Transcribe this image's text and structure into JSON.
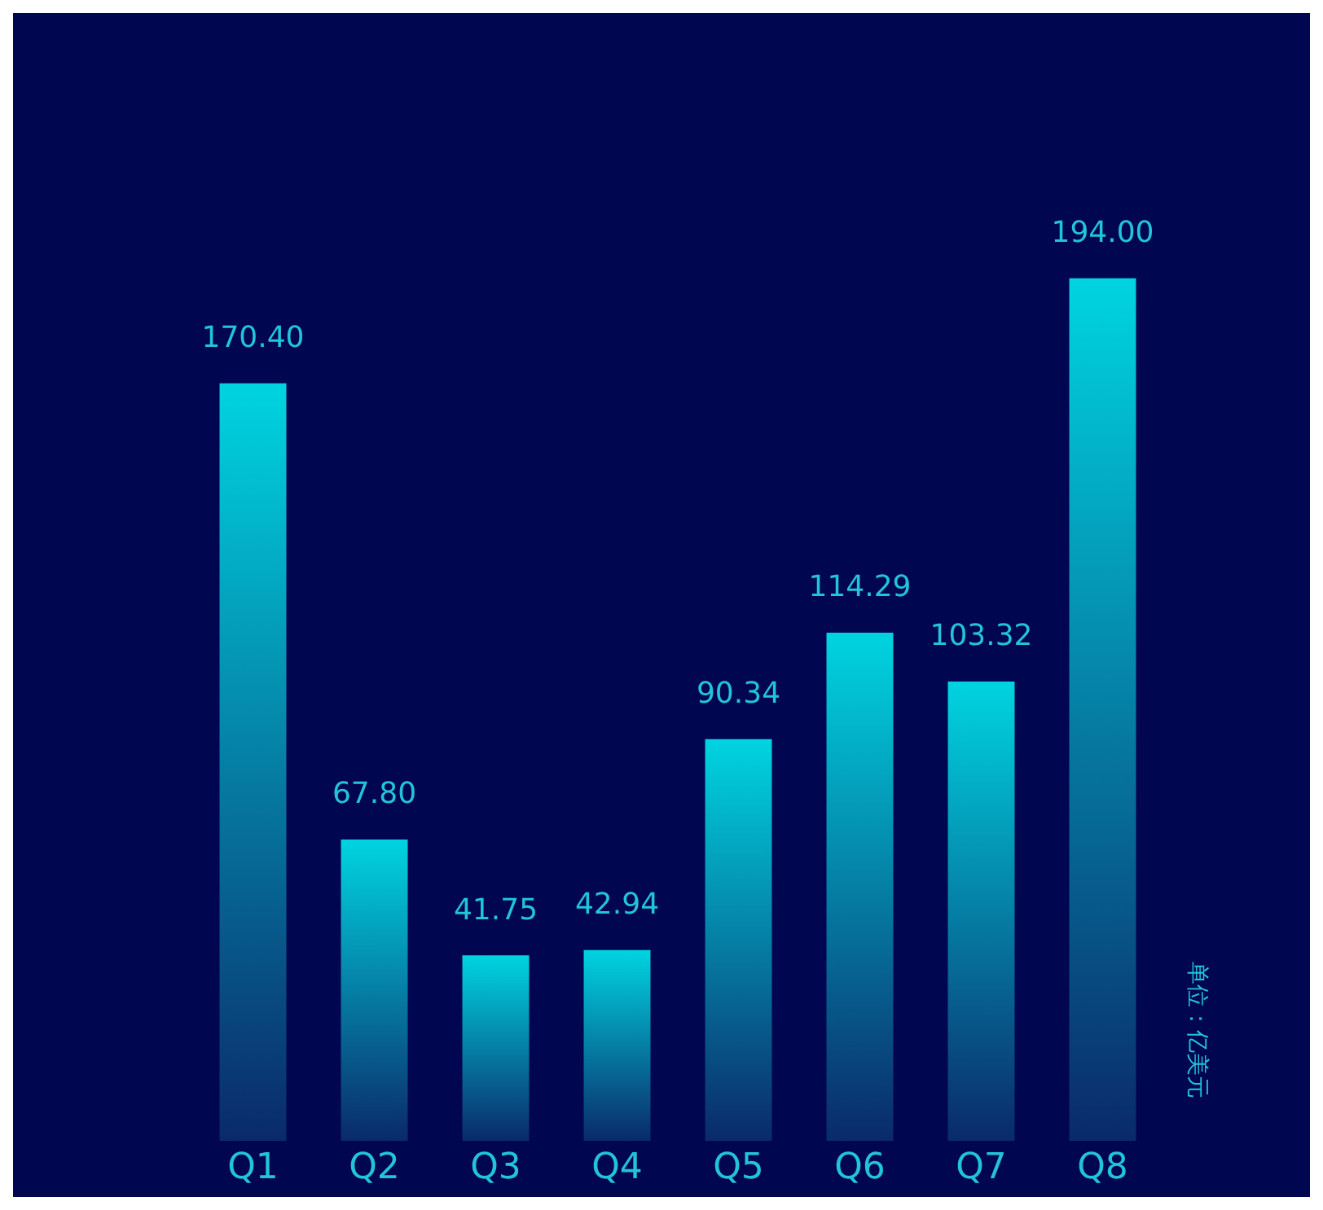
{
  "chart_data": {
    "type": "bar",
    "categories": [
      "Q1",
      "Q2",
      "Q3",
      "Q4",
      "Q5",
      "Q6",
      "Q7",
      "Q8"
    ],
    "values": [
      170.4,
      67.8,
      41.75,
      42.94,
      90.34,
      114.29,
      103.32,
      194.0
    ],
    "value_labels": [
      "170.40",
      "67.80",
      "41.75",
      "42.94",
      "90.34",
      "114.29",
      "103.32",
      "194.00"
    ],
    "color": "#00d4e0",
    "annotations": [
      "单位：亿美元"
    ],
    "grid": false,
    "legend": false
  }
}
